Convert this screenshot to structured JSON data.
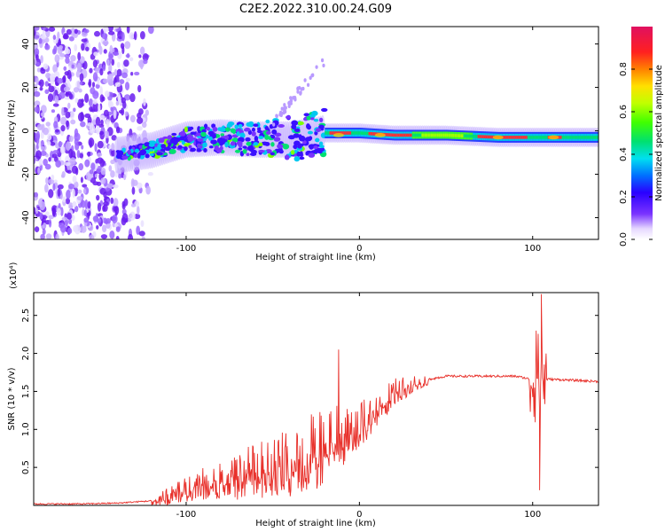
{
  "figure_title": "C2E2.2022.310.00.24.G09",
  "chart_data": [
    {
      "type": "heatmap",
      "title": "C2E2.2022.310.00.24.G09",
      "xlabel": "Height of straight line (km)",
      "ylabel": "Frequency (Hz)",
      "xlim": [
        -188,
        138
      ],
      "ylim": [
        -50,
        48
      ],
      "xticks": [
        -100,
        0,
        100
      ],
      "xtick_labels": [
        "-100",
        "0",
        "100"
      ],
      "yticks": [
        -40,
        -20,
        0,
        20,
        40
      ],
      "ytick_labels": [
        "-40",
        "-20",
        "0",
        "20",
        "40"
      ],
      "colorbar": {
        "label": "Normalized spectral amplitude",
        "range": [
          0.0,
          1.0
        ],
        "ticks": [
          0.0,
          0.2,
          0.4,
          0.6,
          0.8
        ],
        "tick_labels": [
          "0.0",
          "0.2",
          "0.4",
          "0.6",
          "0.8"
        ]
      },
      "ridge": {
        "description": "dominant frequency track vs height",
        "height_km": [
          -138,
          -120,
          -100,
          -80,
          -60,
          -40,
          -25,
          -20,
          0,
          20,
          50,
          80,
          100,
          120,
          138
        ],
        "frequency_hz": [
          -11,
          -9,
          -4,
          -3,
          -4,
          -4,
          -2,
          -1,
          -1,
          -2,
          -2,
          -3,
          -3,
          -3,
          -3
        ]
      },
      "noise_region_km": [
        -188,
        -120
      ]
    },
    {
      "type": "line",
      "xlabel": "Height of straight line (km)",
      "ylabel": "SNR (10 * v/v)",
      "y_scale_label": "(x10⁴)",
      "xlim": [
        -188,
        138
      ],
      "ylim": [
        0,
        2.8
      ],
      "xticks": [
        -100,
        0,
        100
      ],
      "xtick_labels": [
        "-100",
        "0",
        "100"
      ],
      "yticks": [
        0.5,
        1.0,
        1.5,
        2.0,
        2.5
      ],
      "ytick_labels": [
        "0.5",
        "1.0",
        "1.5",
        "2.0",
        "2.5"
      ],
      "color": "#e8302a",
      "series": [
        {
          "name": "SNR",
          "x": [
            -188,
            -160,
            -140,
            -120,
            -110,
            -100,
            -90,
            -80,
            -70,
            -60,
            -50,
            -40,
            -30,
            -20,
            -15,
            -10,
            0,
            10,
            20,
            30,
            40,
            50,
            60,
            70,
            80,
            90,
            95,
            100,
            103,
            105,
            107,
            110,
            120,
            138
          ],
          "y": [
            0.02,
            0.02,
            0.03,
            0.06,
            0.12,
            0.22,
            0.3,
            0.36,
            0.4,
            0.48,
            0.52,
            0.6,
            0.7,
            0.82,
            1.0,
            0.9,
            1.05,
            1.3,
            1.5,
            1.6,
            1.66,
            1.7,
            1.7,
            1.7,
            1.7,
            1.7,
            1.68,
            1.65,
            1.7,
            1.65,
            1.66,
            1.66,
            1.65,
            1.63
          ]
        }
      ],
      "spikes": [
        {
          "x": -12,
          "y": 2.05
        },
        {
          "x": 102,
          "y": 2.3
        },
        {
          "x": 105,
          "y": 2.78
        },
        {
          "x": 104,
          "y": 0.2
        }
      ]
    }
  ]
}
